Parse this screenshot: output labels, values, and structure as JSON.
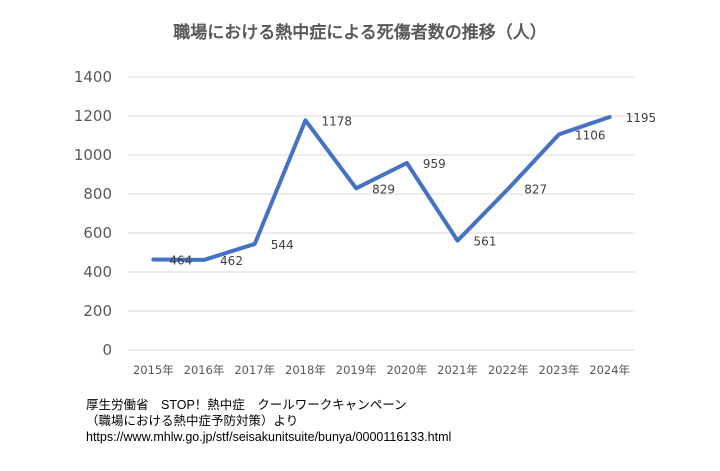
{
  "chart_data": {
    "type": "line",
    "title": "職場における熱中症による死傷者数の推移（人）",
    "categories": [
      "2015年",
      "2016年",
      "2017年",
      "2018年",
      "2019年",
      "2020年",
      "2021年",
      "2022年",
      "2023年",
      "2024年"
    ],
    "series": [
      {
        "name": "死傷者数",
        "values": [
          464,
          462,
          544,
          1178,
          829,
          959,
          561,
          827,
          1106,
          1195
        ],
        "color": "#4472C4"
      }
    ],
    "ylim": [
      0,
      1400
    ],
    "yticks": [
      0,
      200,
      400,
      600,
      800,
      1000,
      1200,
      1400
    ],
    "grid": true,
    "xlabel": "",
    "ylabel": ""
  },
  "source": {
    "line1": "厚生労働省　STOP！熱中症　クールワークキャンペーン",
    "line2": "（職場における熱中症予防対策）より",
    "line3": "https://www.mhlw.go.jp/stf/seisakunitsuite/bunya/0000116133.html"
  }
}
